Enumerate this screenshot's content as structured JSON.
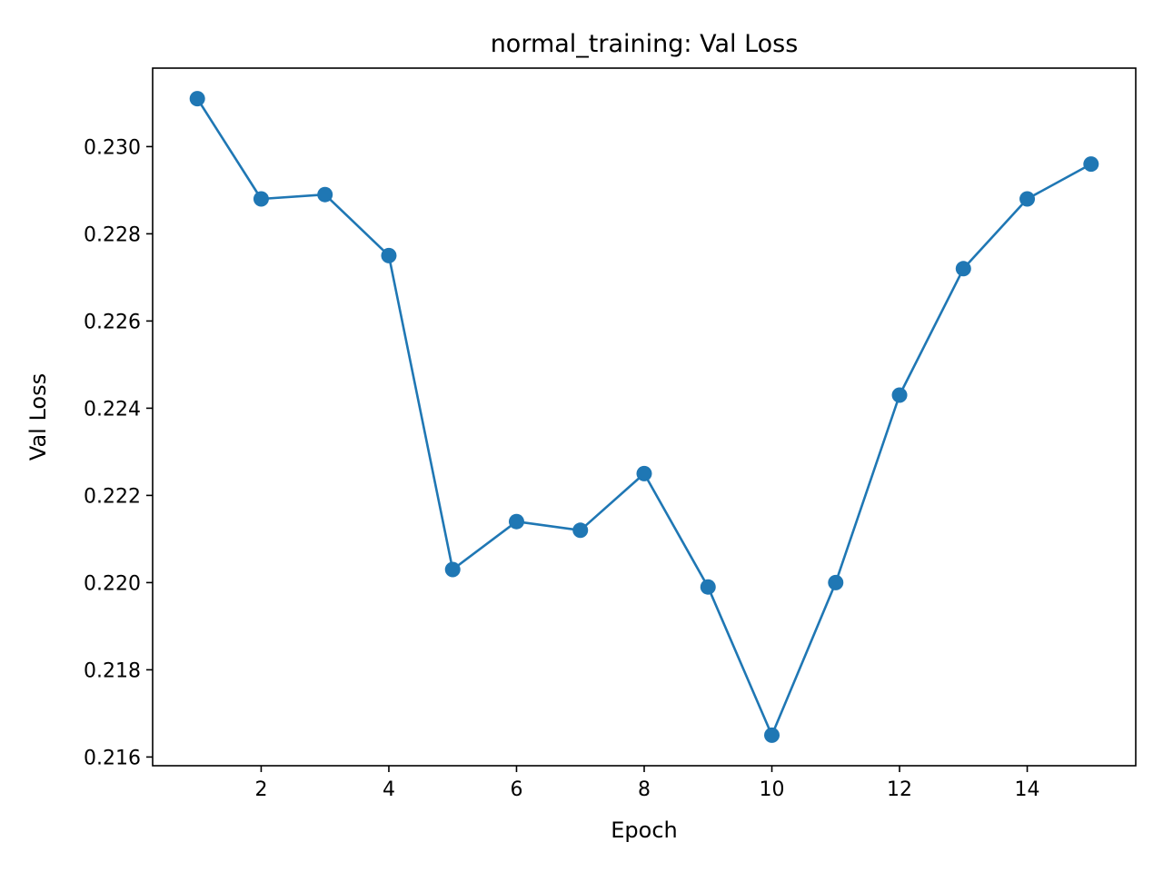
{
  "chart_data": {
    "type": "line",
    "title": "normal_training: Val Loss",
    "xlabel": "Epoch",
    "ylabel": "Val Loss",
    "xlim": [
      0.3,
      15.7
    ],
    "ylim": [
      0.2158,
      0.2318
    ],
    "xticks": [
      2,
      4,
      6,
      8,
      10,
      12,
      14
    ],
    "xtick_labels": [
      "2",
      "4",
      "6",
      "8",
      "10",
      "12",
      "14"
    ],
    "yticks": [
      0.216,
      0.218,
      0.22,
      0.222,
      0.224,
      0.226,
      0.228,
      0.23
    ],
    "ytick_labels": [
      "0.216",
      "0.218",
      "0.220",
      "0.222",
      "0.224",
      "0.226",
      "0.228",
      "0.230"
    ],
    "grid": false,
    "markers": true,
    "series": [
      {
        "color": "#1f77b4",
        "x": [
          1,
          2,
          3,
          4,
          5,
          6,
          7,
          8,
          9,
          10,
          11,
          12,
          13,
          14,
          15
        ],
        "y": [
          0.2311,
          0.2288,
          0.2289,
          0.2275,
          0.2203,
          0.2214,
          0.2212,
          0.2225,
          0.2199,
          0.2165,
          0.22,
          0.2243,
          0.2272,
          0.2288,
          0.2296
        ]
      }
    ]
  }
}
